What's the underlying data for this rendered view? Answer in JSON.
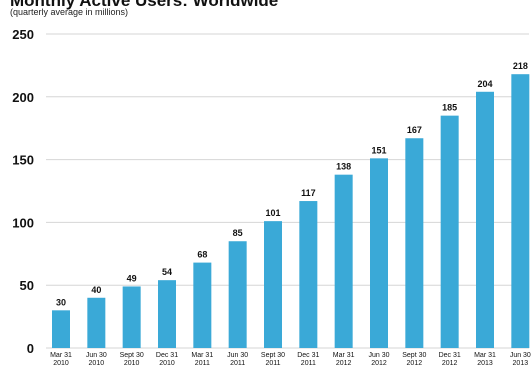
{
  "chart_data": {
    "type": "bar",
    "title": "Monthly Active Users: Worldwide",
    "subtitle": "(quarterly average in millions)",
    "categories": [
      [
        "Mar 31",
        "2010"
      ],
      [
        "Jun 30",
        "2010"
      ],
      [
        "Sept 30",
        "2010"
      ],
      [
        "Dec 31",
        "2010"
      ],
      [
        "Mar 31",
        "2011"
      ],
      [
        "Jun 30",
        "2011"
      ],
      [
        "Sept 30",
        "2011"
      ],
      [
        "Dec 31",
        "2011"
      ],
      [
        "Mar 31",
        "2012"
      ],
      [
        "Jun 30",
        "2012"
      ],
      [
        "Sept 30",
        "2012"
      ],
      [
        "Dec 31",
        "2012"
      ],
      [
        "Mar 31",
        "2013"
      ],
      [
        "Jun 30",
        "2013"
      ]
    ],
    "values": [
      30,
      40,
      49,
      54,
      68,
      85,
      101,
      117,
      138,
      151,
      167,
      185,
      204,
      218
    ],
    "ylim": [
      0,
      250
    ],
    "yticks": [
      0,
      50,
      100,
      150,
      200,
      250
    ],
    "grid": true,
    "bar_color": "#3aa9d7",
    "grid_color": "#d6d6d6"
  }
}
